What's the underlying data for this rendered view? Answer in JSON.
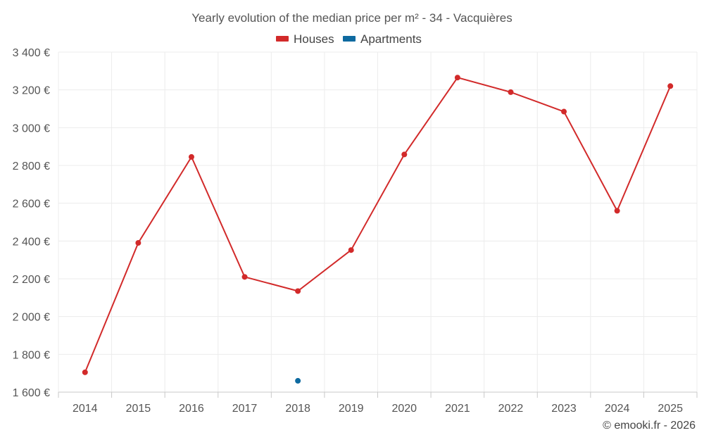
{
  "chart_data": {
    "type": "line",
    "title": "Yearly evolution of the median price per m² - 34 - Vacquières",
    "categories": [
      "2014",
      "2015",
      "2016",
      "2017",
      "2018",
      "2019",
      "2020",
      "2021",
      "2022",
      "2023",
      "2024",
      "2025"
    ],
    "series": [
      {
        "name": "Houses",
        "color": "#d22a2a",
        "values": [
          1705,
          2390,
          2845,
          2210,
          2135,
          2352,
          2858,
          3265,
          3188,
          3085,
          2560,
          3220
        ]
      },
      {
        "name": "Apartments",
        "color": "#0e6aa0",
        "values": [
          null,
          null,
          null,
          null,
          1660,
          null,
          null,
          null,
          null,
          null,
          null,
          null
        ]
      }
    ],
    "ylim": [
      1600,
      3400
    ],
    "yticks": [
      1600,
      1800,
      2000,
      2200,
      2400,
      2600,
      2800,
      3000,
      3200,
      3400
    ],
    "ytick_labels": [
      "1 600 €",
      "1 800 €",
      "2 000 €",
      "2 200 €",
      "2 400 €",
      "2 600 €",
      "2 800 €",
      "3 000 €",
      "3 200 €",
      "3 400 €"
    ],
    "xlabel": "",
    "ylabel": "",
    "grid": true,
    "legend_position": "top-center"
  },
  "credit": "© emooki.fr - 2026"
}
